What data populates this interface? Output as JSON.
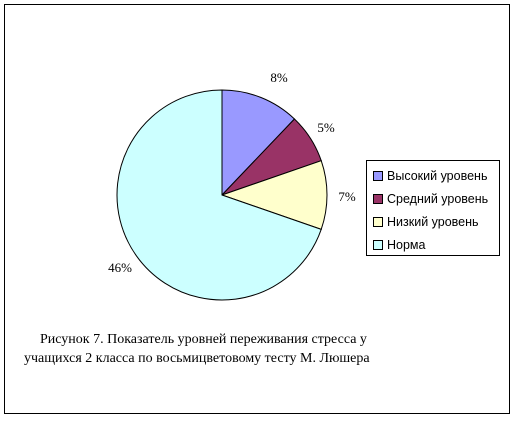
{
  "chart_data": {
    "type": "pie",
    "categories": [
      "Высокий уровень",
      "Средний уровень",
      "Низкий уровень",
      "Норма"
    ],
    "values": [
      8,
      5,
      7,
      46
    ],
    "value_labels": [
      "8%",
      "5%",
      "7%",
      "46%"
    ],
    "colors": [
      "#9999ff",
      "#993366",
      "#ffffcc",
      "#ccffff"
    ],
    "legend_position": "right"
  },
  "caption": {
    "line1": "Рисунок 7. Показатель уровней переживания стресса у",
    "line2": "учащихся 2 класса по восьмицветовому тесту М. Люшера"
  }
}
